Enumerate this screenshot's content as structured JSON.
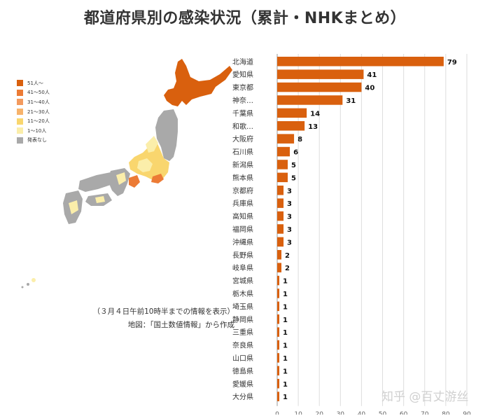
{
  "title": "都道府県別の感染状況（累計・NHKまとめ）",
  "legend": [
    {
      "label": "51人〜",
      "color": "#d9600e"
    },
    {
      "label": "41〜50人",
      "color": "#ec7b35"
    },
    {
      "label": "31〜40人",
      "color": "#f39a5e"
    },
    {
      "label": "21〜30人",
      "color": "#f7b36b"
    },
    {
      "label": "11〜20人",
      "color": "#f9d66e"
    },
    {
      "label": "1〜10人",
      "color": "#fbeeaa"
    },
    {
      "label": "発表なし",
      "color": "#a9a9a9"
    }
  ],
  "notes": {
    "line1": "（３月４日午前10時半までの情報を表示）",
    "line2": "地図：「国土数値情報」から作成"
  },
  "watermark": "知乎 @百丈游丝",
  "colors": {
    "bar": "#d9600e",
    "grid": "#dddddd",
    "axis": "#999999"
  },
  "chart_data": {
    "type": "bar",
    "orientation": "horizontal",
    "categories": [
      "北海道",
      "愛知県",
      "東京都",
      "神奈…",
      "千葉県",
      "和歌…",
      "大阪府",
      "石川県",
      "新潟県",
      "熊本県",
      "京都府",
      "兵庫県",
      "高知県",
      "福岡県",
      "沖縄県",
      "長野県",
      "岐阜県",
      "宮城県",
      "栃木県",
      "埼玉県",
      "静岡県",
      "三重県",
      "奈良県",
      "山口県",
      "徳島県",
      "愛媛県",
      "大分県"
    ],
    "values": [
      79,
      41,
      40,
      31,
      14,
      13,
      8,
      6,
      5,
      5,
      3,
      3,
      3,
      3,
      3,
      2,
      2,
      1,
      1,
      1,
      1,
      1,
      1,
      1,
      1,
      1,
      1
    ],
    "xlim": [
      0,
      95
    ],
    "xticks": [
      0,
      10,
      20,
      30,
      40,
      50,
      60,
      70,
      80,
      90
    ],
    "grid": true
  }
}
